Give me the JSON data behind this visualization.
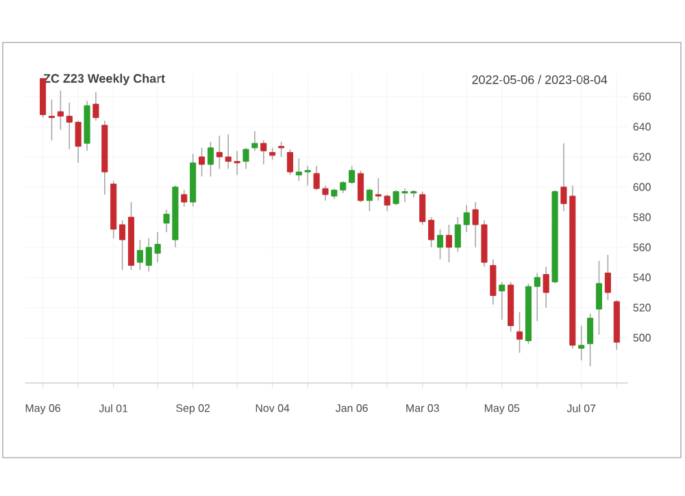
{
  "chart_data": {
    "type": "candlestick",
    "title": "ZC Z23 Weekly Chart",
    "subtitle": "2022-05-06 / 2023-08-04",
    "x": [
      "2022-05-06",
      "2022-05-13",
      "2022-05-20",
      "2022-05-27",
      "2022-06-03",
      "2022-06-10",
      "2022-06-17",
      "2022-06-24",
      "2022-07-01",
      "2022-07-08",
      "2022-07-15",
      "2022-07-22",
      "2022-07-29",
      "2022-08-05",
      "2022-08-12",
      "2022-08-19",
      "2022-08-26",
      "2022-09-02",
      "2022-09-09",
      "2022-09-16",
      "2022-09-23",
      "2022-09-30",
      "2022-10-07",
      "2022-10-14",
      "2022-10-21",
      "2022-10-28",
      "2022-11-04",
      "2022-11-11",
      "2022-11-18",
      "2022-11-25",
      "2022-12-02",
      "2022-12-09",
      "2022-12-16",
      "2022-12-23",
      "2022-12-30",
      "2023-01-06",
      "2023-01-13",
      "2023-01-20",
      "2023-01-27",
      "2023-02-03",
      "2023-02-10",
      "2023-02-17",
      "2023-02-24",
      "2023-03-03",
      "2023-03-10",
      "2023-03-17",
      "2023-03-24",
      "2023-03-31",
      "2023-04-07",
      "2023-04-14",
      "2023-04-21",
      "2023-04-28",
      "2023-05-05",
      "2023-05-12",
      "2023-05-19",
      "2023-05-26",
      "2023-06-02",
      "2023-06-09",
      "2023-06-16",
      "2023-06-23",
      "2023-06-30",
      "2023-07-07",
      "2023-07-14",
      "2023-07-21",
      "2023-07-28",
      "2023-08-04"
    ],
    "ohlc": [
      [
        672,
        672,
        646,
        648
      ],
      [
        647,
        658,
        631,
        646
      ],
      [
        650,
        664,
        638,
        647
      ],
      [
        647,
        656,
        625,
        643
      ],
      [
        643,
        644,
        616,
        627
      ],
      [
        629,
        657,
        624,
        654
      ],
      [
        655,
        663,
        644,
        646
      ],
      [
        641,
        644,
        595,
        610
      ],
      [
        602,
        604,
        566,
        572
      ],
      [
        575,
        578,
        545,
        565
      ],
      [
        580,
        590,
        545,
        548
      ],
      [
        550,
        565,
        545,
        558
      ],
      [
        548,
        566,
        544,
        560
      ],
      [
        556,
        570,
        550,
        562
      ],
      [
        576,
        585,
        570,
        582
      ],
      [
        565,
        601,
        560,
        600
      ],
      [
        595,
        598,
        587,
        590
      ],
      [
        590,
        622,
        587,
        616
      ],
      [
        620,
        626,
        607,
        615
      ],
      [
        615,
        630,
        607,
        626
      ],
      [
        623,
        634,
        612,
        620
      ],
      [
        620,
        635,
        612,
        617
      ],
      [
        617,
        624,
        608,
        616
      ],
      [
        617,
        626,
        612,
        625
      ],
      [
        626,
        637,
        624,
        629
      ],
      [
        629,
        631,
        615,
        624
      ],
      [
        623,
        626,
        618,
        621
      ],
      [
        627,
        630,
        620,
        626
      ],
      [
        623,
        625,
        608,
        610
      ],
      [
        608,
        619,
        604,
        610
      ],
      [
        610,
        614,
        601,
        611
      ],
      [
        609,
        614,
        598,
        599
      ],
      [
        599,
        601,
        591,
        595
      ],
      [
        594,
        599,
        592,
        598
      ],
      [
        598,
        604,
        596,
        603
      ],
      [
        603,
        614,
        602,
        611
      ],
      [
        609,
        611,
        590,
        591
      ],
      [
        591,
        599,
        584,
        598
      ],
      [
        595,
        606,
        591,
        594
      ],
      [
        594,
        595,
        584,
        588
      ],
      [
        589,
        598,
        588,
        597
      ],
      [
        596,
        599,
        590,
        597
      ],
      [
        596,
        598,
        593,
        597
      ],
      [
        595,
        597,
        575,
        577
      ],
      [
        578,
        580,
        560,
        565
      ],
      [
        560,
        572,
        552,
        568
      ],
      [
        568,
        575,
        550,
        560
      ],
      [
        560,
        580,
        557,
        575
      ],
      [
        575,
        588,
        570,
        583
      ],
      [
        585,
        590,
        560,
        575
      ],
      [
        575,
        578,
        547,
        550
      ],
      [
        548,
        552,
        522,
        528
      ],
      [
        531,
        537,
        512,
        535
      ],
      [
        535,
        537,
        504,
        508
      ],
      [
        504,
        517,
        490,
        499
      ],
      [
        498,
        536,
        496,
        534
      ],
      [
        534,
        543,
        511,
        540
      ],
      [
        542,
        547,
        520,
        530
      ],
      [
        537,
        598,
        536,
        597
      ],
      [
        600,
        629,
        584,
        589
      ],
      [
        594,
        601,
        493,
        495
      ],
      [
        493,
        508,
        485,
        495
      ],
      [
        496,
        516,
        481,
        513
      ],
      [
        519,
        551,
        502,
        536
      ],
      [
        543,
        555,
        525,
        530
      ],
      [
        524,
        525,
        492,
        497
      ]
    ],
    "colors": [
      "#c62a2f",
      "#c62a2f",
      "#c62a2f",
      "#c62a2f",
      "#c62a2f",
      "#2ca02c",
      "#c62a2f",
      "#c62a2f",
      "#c62a2f",
      "#c62a2f",
      "#c62a2f",
      "#2ca02c",
      "#2ca02c",
      "#2ca02c",
      "#2ca02c",
      "#2ca02c",
      "#c62a2f",
      "#2ca02c",
      "#c62a2f",
      "#2ca02c",
      "#c62a2f",
      "#c62a2f",
      "#c62a2f",
      "#2ca02c",
      "#2ca02c",
      "#c62a2f",
      "#c62a2f",
      "#c62a2f",
      "#c62a2f",
      "#2ca02c",
      "#2ca02c",
      "#c62a2f",
      "#c62a2f",
      "#2ca02c",
      "#2ca02c",
      "#2ca02c",
      "#c62a2f",
      "#2ca02c",
      "#c62a2f",
      "#c62a2f",
      "#2ca02c",
      "#2ca02c",
      "#2ca02c",
      "#c62a2f",
      "#c62a2f",
      "#2ca02c",
      "#c62a2f",
      "#2ca02c",
      "#2ca02c",
      "#c62a2f",
      "#c62a2f",
      "#c62a2f",
      "#2ca02c",
      "#c62a2f",
      "#c62a2f",
      "#2ca02c",
      "#2ca02c",
      "#c62a2f",
      "#2ca02c",
      "#c62a2f",
      "#c62a2f",
      "#2ca02c",
      "#2ca02c",
      "#2ca02c",
      "#c62a2f",
      "#c62a2f"
    ],
    "xlim": [
      "2022-04-22",
      "2023-08-13"
    ],
    "xticks": [
      {
        "value": "2022-05-06",
        "label": "May 06"
      },
      {
        "value": "2022-06-03",
        "label": null
      },
      {
        "value": "2022-07-01",
        "label": "Jul 01"
      },
      {
        "value": "2022-08-05",
        "label": null
      },
      {
        "value": "2022-09-02",
        "label": "Sep 02"
      },
      {
        "value": "2022-10-07",
        "label": null
      },
      {
        "value": "2022-11-04",
        "label": "Nov 04"
      },
      {
        "value": "2022-12-02",
        "label": null
      },
      {
        "value": "2023-01-06",
        "label": "Jan 06"
      },
      {
        "value": "2023-02-03",
        "label": null
      },
      {
        "value": "2023-03-03",
        "label": "Mar 03"
      },
      {
        "value": "2023-04-07",
        "label": null
      },
      {
        "value": "2023-05-05",
        "label": "May 05"
      },
      {
        "value": "2023-06-02",
        "label": null
      },
      {
        "value": "2023-07-07",
        "label": "Jul 07"
      },
      {
        "value": "2023-08-04",
        "label": null
      }
    ],
    "ylim": [
      470,
      675
    ],
    "yticks": [
      500,
      520,
      540,
      560,
      580,
      600,
      620,
      640,
      660
    ],
    "grid": true
  }
}
